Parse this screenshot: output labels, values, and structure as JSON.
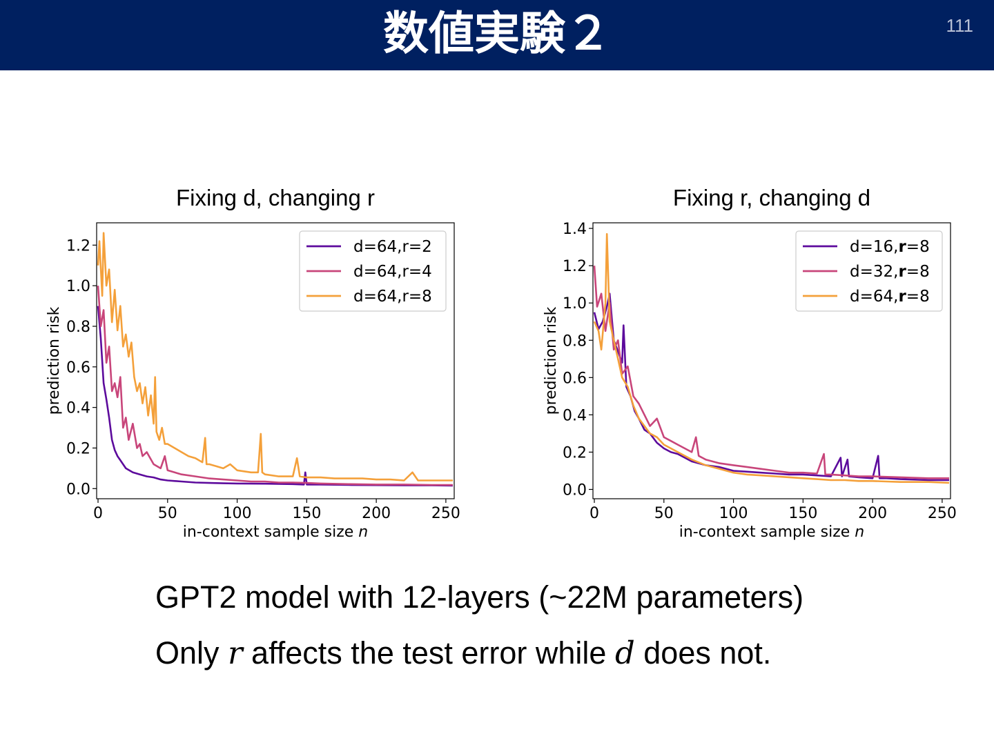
{
  "slide": {
    "title": "数値実験２",
    "page_number": "111"
  },
  "captions": {
    "line1": "GPT2 model with 12-layers (~22M parameters)",
    "line2_before": "Only ",
    "line2_var1": "r",
    "line2_middle": " affects the test error while ",
    "line2_var2": "d",
    "line2_after": " does not."
  },
  "chart_data": [
    {
      "type": "line",
      "title": "Fixing d, changing r",
      "xlabel": "in-context sample size",
      "xlabel_var": "n",
      "ylabel": "prediction risk",
      "xlim": [
        -1,
        256
      ],
      "ylim": [
        -0.05,
        1.31
      ],
      "xticks": [
        0,
        50,
        100,
        150,
        200,
        250
      ],
      "yticks": [
        0.0,
        0.2,
        0.4,
        0.6,
        0.8,
        1.0,
        1.2
      ],
      "grid": false,
      "legend_position": "top-right",
      "series": [
        {
          "name": "d=64,r=2",
          "color": "#5c0a9c",
          "x": [
            0,
            2,
            4,
            6,
            8,
            10,
            12,
            14,
            16,
            18,
            20,
            25,
            30,
            35,
            40,
            45,
            50,
            60,
            70,
            80,
            90,
            100,
            120,
            140,
            148,
            149,
            150,
            160,
            180,
            200,
            220,
            240,
            255
          ],
          "y": [
            0.9,
            0.74,
            0.52,
            0.44,
            0.35,
            0.24,
            0.19,
            0.16,
            0.14,
            0.12,
            0.1,
            0.08,
            0.07,
            0.06,
            0.055,
            0.045,
            0.04,
            0.035,
            0.03,
            0.028,
            0.026,
            0.025,
            0.024,
            0.022,
            0.02,
            0.08,
            0.02,
            0.02,
            0.018,
            0.017,
            0.016,
            0.016,
            0.015
          ]
        },
        {
          "name": "d=64,r=4",
          "color": "#c8457a",
          "x": [
            0,
            2,
            4,
            6,
            8,
            10,
            12,
            14,
            16,
            18,
            20,
            22,
            25,
            28,
            30,
            32,
            35,
            40,
            45,
            48,
            50,
            55,
            60,
            70,
            80,
            90,
            100,
            110,
            120,
            130,
            140,
            150,
            160,
            180,
            200,
            220,
            240,
            255
          ],
          "y": [
            1.0,
            0.8,
            0.88,
            0.62,
            0.7,
            0.48,
            0.52,
            0.45,
            0.55,
            0.3,
            0.35,
            0.24,
            0.32,
            0.2,
            0.22,
            0.16,
            0.18,
            0.12,
            0.1,
            0.16,
            0.09,
            0.08,
            0.07,
            0.06,
            0.05,
            0.045,
            0.04,
            0.035,
            0.035,
            0.03,
            0.03,
            0.028,
            0.025,
            0.022,
            0.02,
            0.02,
            0.018,
            0.018
          ]
        },
        {
          "name": "d=64,r=8",
          "color": "#f4a03a",
          "x": [
            0,
            1,
            3,
            4,
            6,
            8,
            10,
            12,
            14,
            16,
            18,
            20,
            22,
            24,
            26,
            28,
            30,
            32,
            34,
            36,
            38,
            40,
            41,
            42,
            44,
            46,
            48,
            50,
            55,
            60,
            65,
            70,
            75,
            77,
            78,
            80,
            85,
            90,
            95,
            100,
            105,
            110,
            115,
            117,
            118,
            120,
            130,
            140,
            143,
            145,
            150,
            160,
            170,
            180,
            190,
            200,
            210,
            220,
            226,
            230,
            240,
            250,
            255
          ],
          "y": [
            1.1,
            1.22,
            0.95,
            1.26,
            1.0,
            1.08,
            0.82,
            0.98,
            0.78,
            0.9,
            0.7,
            0.76,
            0.65,
            0.72,
            0.55,
            0.48,
            0.52,
            0.42,
            0.5,
            0.36,
            0.46,
            0.32,
            0.55,
            0.28,
            0.24,
            0.3,
            0.22,
            0.22,
            0.2,
            0.18,
            0.16,
            0.15,
            0.13,
            0.25,
            0.12,
            0.12,
            0.11,
            0.1,
            0.12,
            0.09,
            0.085,
            0.08,
            0.08,
            0.27,
            0.08,
            0.07,
            0.06,
            0.06,
            0.15,
            0.06,
            0.055,
            0.055,
            0.05,
            0.05,
            0.05,
            0.045,
            0.045,
            0.04,
            0.08,
            0.04,
            0.04,
            0.04,
            0.04
          ]
        }
      ]
    },
    {
      "type": "line",
      "title": "Fixing r, changing d",
      "xlabel": "in-context sample size",
      "xlabel_var": "n",
      "ylabel": "prediction risk",
      "xlim": [
        -1,
        256
      ],
      "ylim": [
        -0.05,
        1.43
      ],
      "xticks": [
        0,
        50,
        100,
        150,
        200,
        250
      ],
      "yticks": [
        0.0,
        0.2,
        0.4,
        0.6,
        0.8,
        1.0,
        1.2,
        1.4
      ],
      "grid": false,
      "legend_position": "top-right",
      "series": [
        {
          "name": "d=16,r=8",
          "name_parts": [
            "d=16,",
            "r",
            "=8"
          ],
          "color": "#5c0a9c",
          "x": [
            0,
            3,
            6,
            9,
            11,
            14,
            17,
            20,
            21,
            23,
            26,
            29,
            32,
            36,
            40,
            45,
            50,
            55,
            60,
            65,
            70,
            75,
            80,
            90,
            100,
            110,
            120,
            130,
            140,
            150,
            160,
            170,
            177,
            178,
            182,
            183,
            190,
            200,
            204,
            205,
            210,
            220,
            240,
            255
          ],
          "y": [
            0.95,
            0.86,
            0.9,
            0.98,
            1.05,
            0.8,
            0.74,
            0.68,
            0.88,
            0.55,
            0.5,
            0.42,
            0.38,
            0.32,
            0.3,
            0.25,
            0.22,
            0.2,
            0.19,
            0.17,
            0.15,
            0.14,
            0.13,
            0.12,
            0.1,
            0.095,
            0.09,
            0.085,
            0.08,
            0.08,
            0.075,
            0.07,
            0.17,
            0.07,
            0.16,
            0.07,
            0.065,
            0.06,
            0.18,
            0.06,
            0.06,
            0.055,
            0.05,
            0.05
          ]
        },
        {
          "name": "d=32,r=8",
          "name_parts": [
            "d=32,",
            "r",
            "=8"
          ],
          "color": "#c8457a",
          "x": [
            0,
            2,
            5,
            8,
            11,
            14,
            17,
            20,
            24,
            28,
            32,
            36,
            40,
            45,
            50,
            55,
            60,
            70,
            73,
            75,
            80,
            90,
            100,
            110,
            120,
            130,
            140,
            150,
            160,
            165,
            166,
            170,
            180,
            190,
            200,
            220,
            240,
            255
          ],
          "y": [
            1.2,
            0.98,
            1.05,
            0.85,
            1.0,
            0.75,
            0.8,
            0.62,
            0.66,
            0.5,
            0.46,
            0.4,
            0.34,
            0.38,
            0.28,
            0.26,
            0.24,
            0.2,
            0.28,
            0.18,
            0.16,
            0.14,
            0.13,
            0.12,
            0.11,
            0.1,
            0.09,
            0.09,
            0.085,
            0.19,
            0.08,
            0.08,
            0.075,
            0.07,
            0.07,
            0.065,
            0.06,
            0.06
          ]
        },
        {
          "name": "d=64,r=8",
          "name_parts": [
            "d=64,",
            "r",
            "=8"
          ],
          "color": "#f4a03a",
          "x": [
            0,
            3,
            5,
            8,
            9,
            11,
            14,
            17,
            20,
            24,
            28,
            32,
            36,
            40,
            45,
            50,
            55,
            60,
            70,
            80,
            90,
            100,
            110,
            120,
            130,
            140,
            150,
            160,
            170,
            180,
            190,
            200,
            220,
            240,
            255
          ],
          "y": [
            0.9,
            0.85,
            0.75,
            1.0,
            1.37,
            0.9,
            0.8,
            0.7,
            0.6,
            0.55,
            0.45,
            0.38,
            0.34,
            0.3,
            0.28,
            0.24,
            0.22,
            0.2,
            0.16,
            0.13,
            0.11,
            0.09,
            0.08,
            0.075,
            0.07,
            0.065,
            0.06,
            0.055,
            0.05,
            0.05,
            0.045,
            0.045,
            0.04,
            0.04,
            0.035
          ]
        }
      ]
    }
  ]
}
